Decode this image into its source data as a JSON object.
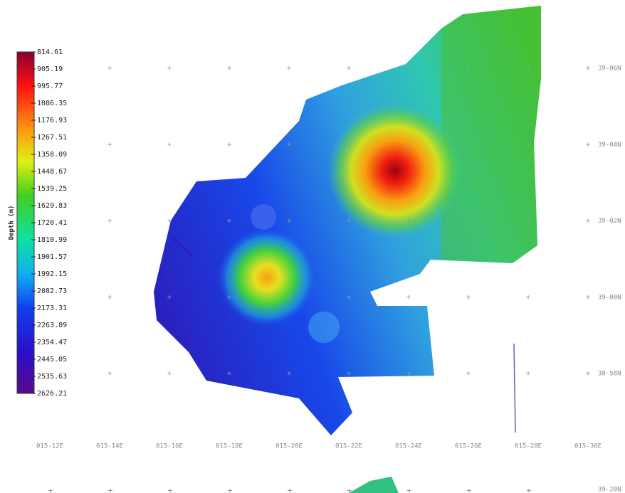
{
  "colorbar": {
    "label": "Depth (m)",
    "ticks": [
      814.61,
      905.19,
      995.77,
      1086.35,
      1176.93,
      1267.51,
      1358.09,
      1448.67,
      1539.25,
      1629.83,
      1720.41,
      1810.99,
      1901.57,
      1992.15,
      2082.73,
      2173.31,
      2263.89,
      2354.47,
      2445.05,
      2535.63,
      2626.21
    ]
  },
  "longitude_labels": [
    "015-12E",
    "015-14E",
    "015-16E",
    "015-18E",
    "015-20E",
    "015-22E",
    "015-24E",
    "015-26E",
    "015-28E",
    "015-30E"
  ],
  "latitude_labels": [
    "39-06N",
    "39-04N",
    "39-02N",
    "39-00N",
    "38-58N"
  ],
  "lower_map_latitude_label": "39-20N"
}
